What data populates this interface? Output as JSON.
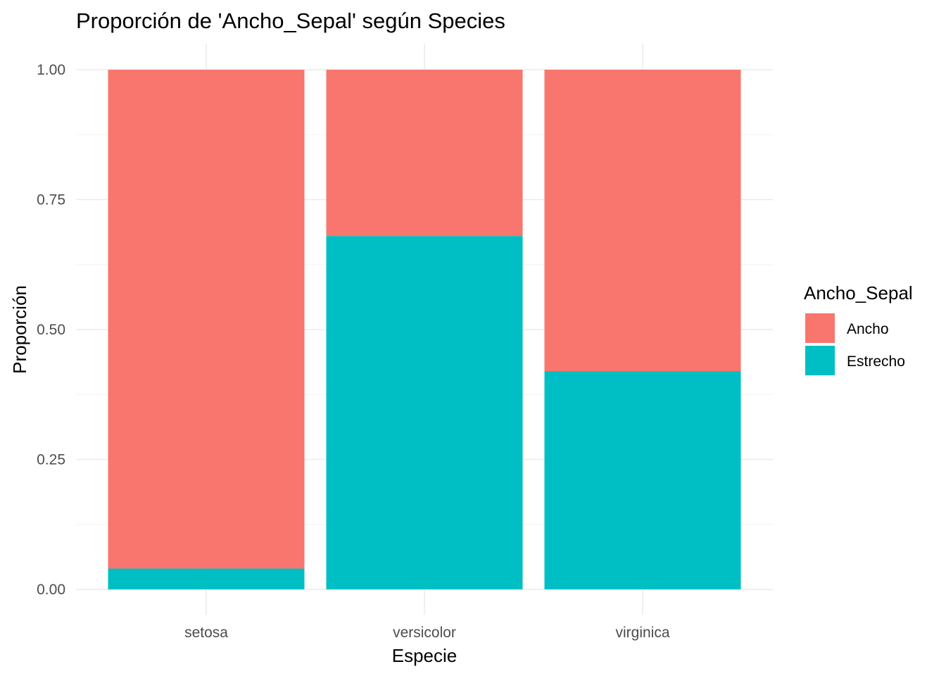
{
  "chart_data": {
    "type": "bar",
    "stacked": true,
    "title": "Proporción de 'Ancho_Sepal' según Species",
    "xlabel": "Especie",
    "ylabel": "Proporción",
    "categories": [
      "setosa",
      "versicolor",
      "virginica"
    ],
    "series": [
      {
        "name": "Estrecho",
        "color": "#00BFC4",
        "values": [
          0.04,
          0.68,
          0.42
        ]
      },
      {
        "name": "Ancho",
        "color": "#F8766D",
        "values": [
          0.96,
          0.32,
          0.58
        ]
      }
    ],
    "ylim": [
      0,
      1
    ],
    "yticks": [
      0,
      0.25,
      0.5,
      0.75,
      1
    ],
    "ytick_labels": [
      "0.00",
      "0.25",
      "0.50",
      "0.75",
      "1.00"
    ],
    "grid": true,
    "legend": {
      "title": "Ancho_Sepal",
      "position": "right",
      "items": [
        {
          "label": "Ancho",
          "color": "#F8766D"
        },
        {
          "label": "Estrecho",
          "color": "#00BFC4"
        }
      ]
    }
  }
}
